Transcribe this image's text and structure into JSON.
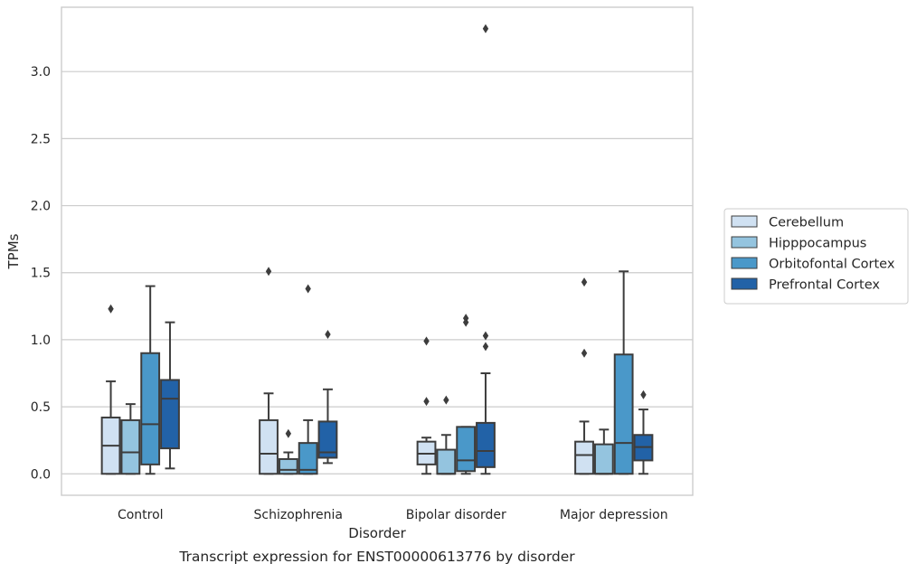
{
  "chart_data": {
    "type": "box",
    "title": "",
    "caption": "Transcript expression for ENST00000613776 by disorder",
    "xlabel": "Disorder",
    "ylabel": "TPMs",
    "ylim": [
      -0.16,
      3.48
    ],
    "yticks": [
      0.0,
      0.5,
      1.0,
      1.5,
      2.0,
      2.5,
      3.0
    ],
    "ytick_labels": [
      "0.0",
      "0.5",
      "1.0",
      "1.5",
      "2.0",
      "2.5",
      "3.0"
    ],
    "grid": "horizontal",
    "legend_position": "right",
    "categories": [
      "Control",
      "Schizophrenia",
      "Bipolar disorder",
      "Major depression"
    ],
    "series": [
      {
        "name": "Cerebellum",
        "color": "#d0e1f2",
        "boxes": [
          {
            "whislo": 0.0,
            "q1": 0.0,
            "med": 0.21,
            "q3": 0.42,
            "whishi": 0.69,
            "fliers": [
              1.23
            ]
          },
          {
            "whislo": 0.0,
            "q1": 0.0,
            "med": 0.15,
            "q3": 0.4,
            "whishi": 0.6,
            "fliers": [
              1.51
            ]
          },
          {
            "whislo": 0.0,
            "q1": 0.07,
            "med": 0.15,
            "q3": 0.24,
            "whishi": 0.27,
            "fliers": [
              0.54,
              0.99
            ]
          },
          {
            "whislo": 0.0,
            "q1": 0.0,
            "med": 0.14,
            "q3": 0.24,
            "whishi": 0.39,
            "fliers": [
              0.9,
              1.43
            ]
          }
        ]
      },
      {
        "name": "Hipppocampus",
        "color": "#94c4df",
        "boxes": [
          {
            "whislo": 0.0,
            "q1": 0.0,
            "med": 0.16,
            "q3": 0.4,
            "whishi": 0.52,
            "fliers": []
          },
          {
            "whislo": 0.0,
            "q1": 0.0,
            "med": 0.03,
            "q3": 0.11,
            "whishi": 0.16,
            "fliers": [
              0.3
            ]
          },
          {
            "whislo": 0.0,
            "q1": 0.0,
            "med": 0.0,
            "q3": 0.18,
            "whishi": 0.29,
            "fliers": [
              0.55
            ]
          },
          {
            "whislo": 0.0,
            "q1": 0.0,
            "med": 0.0,
            "q3": 0.22,
            "whishi": 0.33,
            "fliers": []
          }
        ]
      },
      {
        "name": "Orbitofontal Cortex",
        "color": "#4a98c9",
        "boxes": [
          {
            "whislo": 0.0,
            "q1": 0.07,
            "med": 0.37,
            "q3": 0.9,
            "whishi": 1.4,
            "fliers": []
          },
          {
            "whislo": 0.0,
            "q1": 0.0,
            "med": 0.03,
            "q3": 0.23,
            "whishi": 0.4,
            "fliers": [
              1.38
            ]
          },
          {
            "whislo": 0.0,
            "q1": 0.02,
            "med": 0.1,
            "q3": 0.35,
            "whishi": 0.35,
            "fliers": [
              1.13,
              1.16
            ]
          },
          {
            "whislo": 0.0,
            "q1": 0.0,
            "med": 0.23,
            "q3": 0.89,
            "whishi": 1.51,
            "fliers": []
          }
        ]
      },
      {
        "name": "Prefrontal Cortex",
        "color": "#2262a7",
        "boxes": [
          {
            "whislo": 0.04,
            "q1": 0.19,
            "med": 0.56,
            "q3": 0.7,
            "whishi": 1.13,
            "fliers": []
          },
          {
            "whislo": 0.08,
            "q1": 0.12,
            "med": 0.16,
            "q3": 0.39,
            "whishi": 0.63,
            "fliers": [
              1.04
            ]
          },
          {
            "whislo": 0.0,
            "q1": 0.05,
            "med": 0.17,
            "q3": 0.38,
            "whishi": 0.75,
            "fliers": [
              0.95,
              1.03,
              3.32
            ]
          },
          {
            "whislo": 0.0,
            "q1": 0.1,
            "med": 0.2,
            "q3": 0.29,
            "whishi": 0.48,
            "fliers": [
              0.59
            ]
          }
        ]
      }
    ]
  }
}
